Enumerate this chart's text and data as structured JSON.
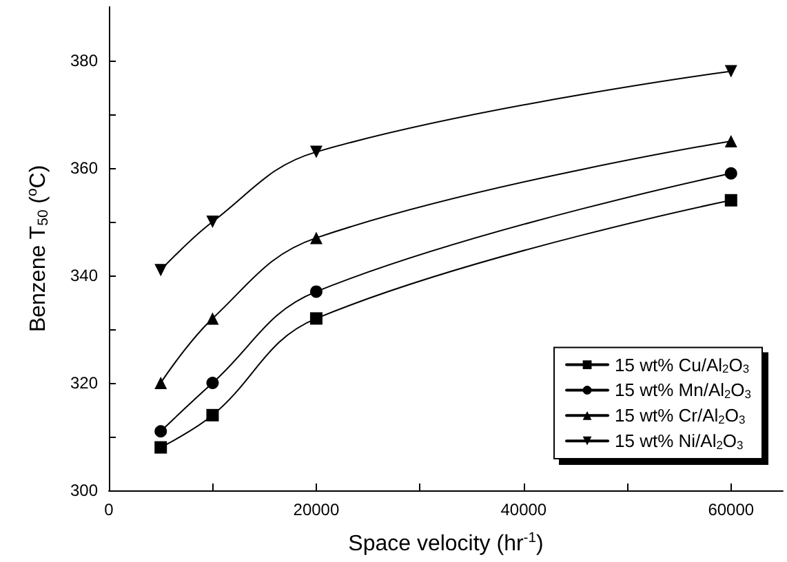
{
  "chart_data": {
    "type": "line",
    "xlabel": "Space velocity (hr$^{-1}$)",
    "ylabel": "Benzene T$_{50}$ ($^{o}$C)",
    "x": [
      5000,
      10000,
      20000,
      60000
    ],
    "xlim": [
      0,
      65000
    ],
    "xticks": [
      0,
      {
        "value": 10000,
        "label": null
      },
      20000,
      {
        "value": 30000,
        "label": null
      },
      40000,
      {
        "value": 50000,
        "label": null
      },
      60000
    ],
    "ylim": [
      300,
      390
    ],
    "yticks": [
      300,
      {
        "value": 310,
        "label": null
      },
      320,
      {
        "value": 330,
        "label": null
      },
      340,
      {
        "value": 350,
        "label": null
      },
      360,
      {
        "value": 370,
        "label": null
      },
      380
    ],
    "grid": false,
    "legend": "bottom right",
    "line_style": "solid",
    "series": [
      {
        "name": "15 wt% Cu/Al$_{2}$O$_{3}$",
        "color": "#000000",
        "marker": "square",
        "values": [
          308,
          314,
          332,
          354
        ]
      },
      {
        "name": "15 wt% Mn/Al$_{2}$O$_{3}$",
        "color": "#000000",
        "marker": "circle",
        "values": [
          311,
          320,
          337,
          359
        ]
      },
      {
        "name": "15 wt% Cr/Al$_{2}$O$_{3}$",
        "color": "#000000",
        "marker": "triangle",
        "values": [
          320,
          332,
          347,
          365
        ]
      },
      {
        "name": "15 wt% Ni/Al$_{2}$O$_{3}$",
        "color": "#000000",
        "marker": "triangle-down",
        "values": [
          341,
          350,
          363,
          378
        ]
      }
    ]
  }
}
